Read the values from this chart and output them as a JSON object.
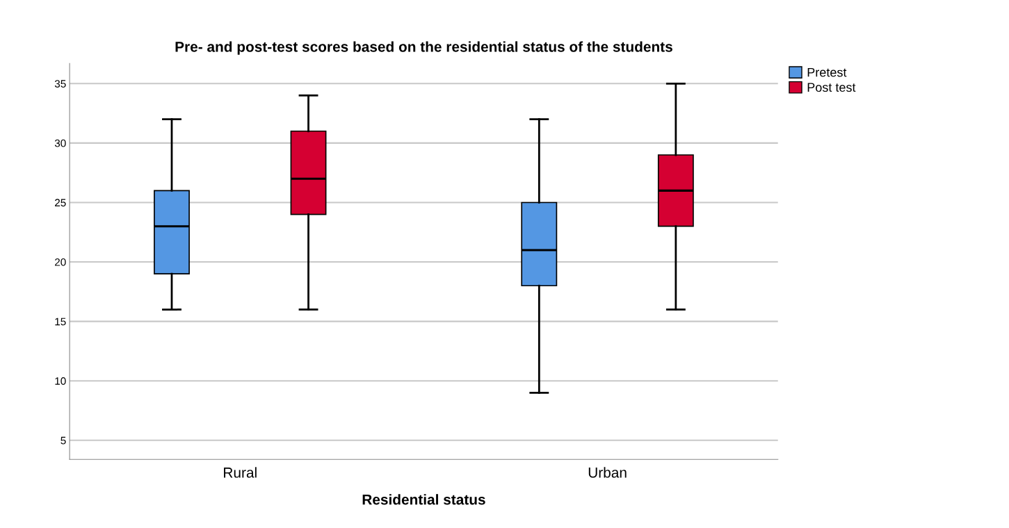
{
  "chart_data": {
    "type": "box",
    "title": "Pre- and post-test scores based on the residential status of the students",
    "xlabel": "Residential status",
    "categories": [
      "Rural",
      "Urban"
    ],
    "series": [
      {
        "name": "Pretest",
        "color": "#5497e3",
        "boxes": [
          {
            "low": 16,
            "q1": 19,
            "median": 23,
            "q3": 26,
            "high": 32
          },
          {
            "low": 9,
            "q1": 18,
            "median": 21,
            "q3": 25,
            "high": 32
          }
        ]
      },
      {
        "name": "Post test",
        "color": "#d50032",
        "boxes": [
          {
            "low": 16,
            "q1": 24,
            "median": 27,
            "q3": 31,
            "high": 34
          },
          {
            "low": 16,
            "q1": 23,
            "median": 26,
            "q3": 29,
            "high": 35
          }
        ]
      }
    ],
    "ylim": [
      3.4,
      36.7
    ],
    "yticks": [
      5,
      10,
      15,
      20,
      25,
      30,
      35
    ],
    "grid": "y",
    "legend": "top right"
  }
}
